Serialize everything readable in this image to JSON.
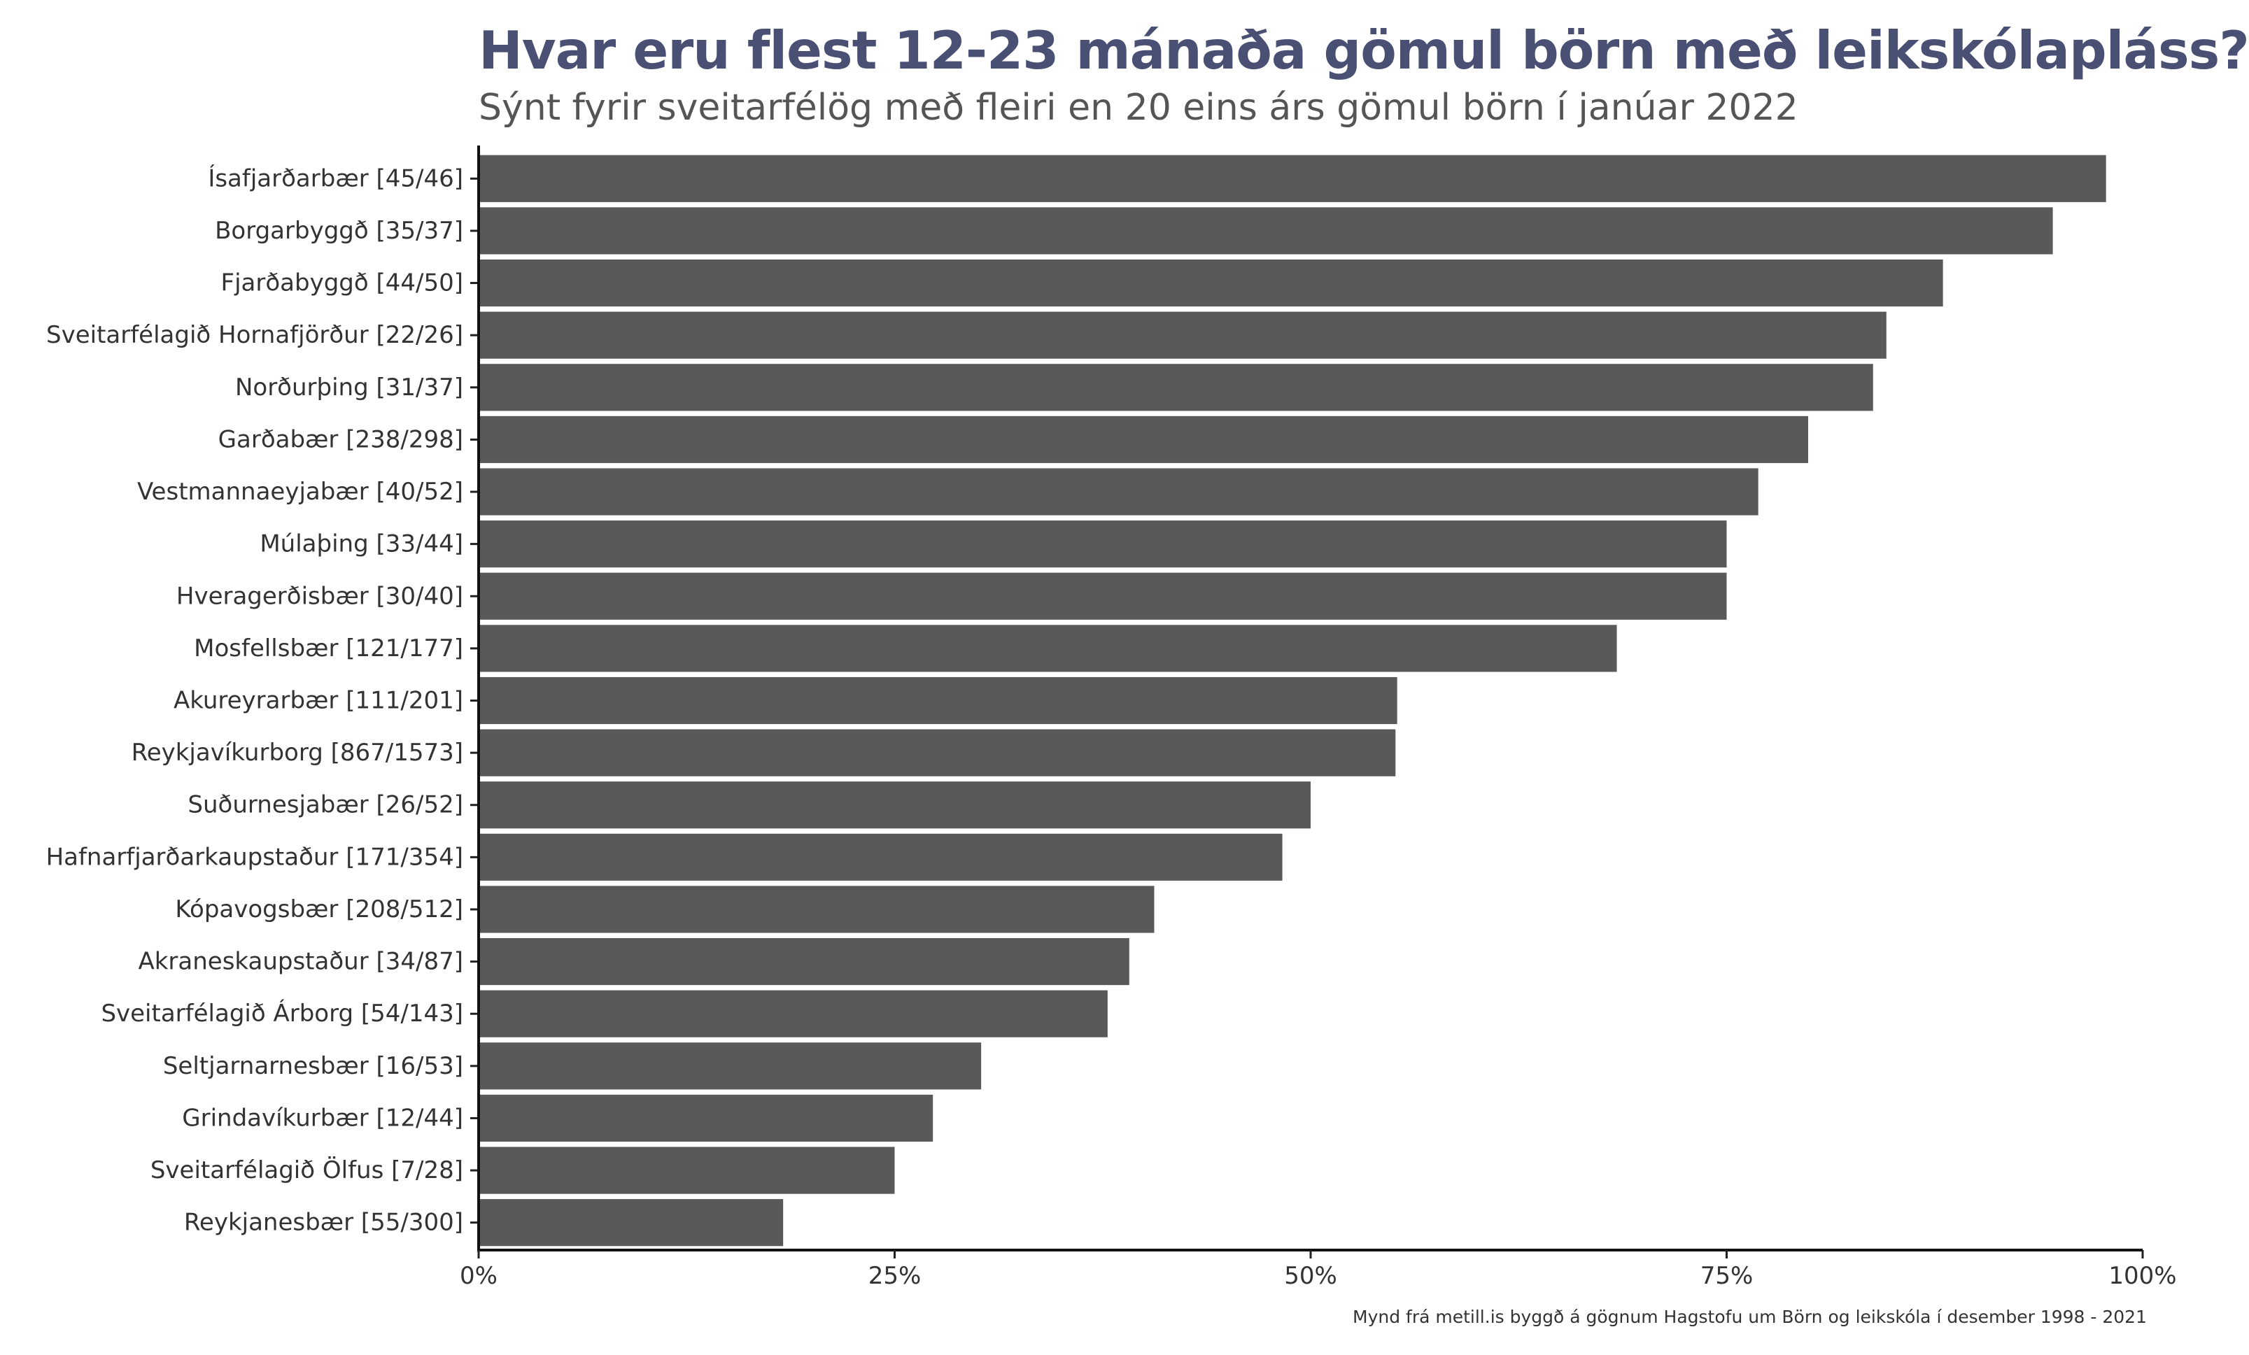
{
  "chart_data": {
    "type": "bar",
    "orientation": "horizontal",
    "title": "Hvar eru flest 12-23 mánaða gömul börn með leikskólapláss?",
    "subtitle": "Sýnt fyrir sveitarfélög með fleiri en 20 eins árs gömul börn í janúar 2022",
    "caption": "Mynd frá metill.is byggð á gögnum Hagstofu um Börn og leikskóla í desember 1998 - 2021",
    "categories": [
      "Ísafjarðarbær [45/46]",
      "Borgarbyggð [35/37]",
      "Fjarðabyggð [44/50]",
      "Sveitarfélagið Hornafjörður [22/26]",
      "Norðurþing [31/37]",
      "Garðabær [238/298]",
      "Vestmannaeyjabær [40/52]",
      "Múlaþing [33/44]",
      "Hveragerðisbær [30/40]",
      "Mosfellsbær [121/177]",
      "Akureyrarbær [111/201]",
      "Reykjavíkurborg [867/1573]",
      "Suðurnesjabær [26/52]",
      "Hafnarfjarðarkaupstaður [171/354]",
      "Kópavogsbær [208/512]",
      "Akraneskaupstaður [34/87]",
      "Sveitarfélagið Árborg [54/143]",
      "Seltjarnarnesbær [16/53]",
      "Grindavíkurbær [12/44]",
      "Sveitarfélagið Ölfus [7/28]",
      "Reykjanesbær [55/300]"
    ],
    "values": [
      0.978,
      0.946,
      0.88,
      0.846,
      0.838,
      0.799,
      0.769,
      0.75,
      0.75,
      0.684,
      0.552,
      0.551,
      0.5,
      0.483,
      0.406,
      0.391,
      0.378,
      0.302,
      0.273,
      0.25,
      0.183
    ],
    "xlim": [
      0,
      1
    ],
    "x_ticks": [
      0,
      0.25,
      0.5,
      0.75,
      1
    ],
    "x_tick_labels": [
      "0%",
      "25%",
      "50%",
      "75%",
      "100%"
    ],
    "xlabel": "",
    "ylabel": "",
    "grid": false,
    "legend": "none",
    "bar_color": "#595959",
    "title_color": "#4a5073"
  }
}
